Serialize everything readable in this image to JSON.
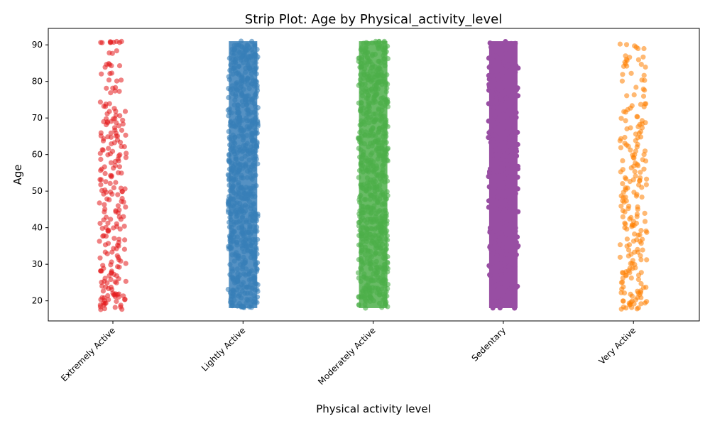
{
  "chart_data": {
    "type": "scatter",
    "subtype": "strip",
    "title": "Strip Plot: Age by Physical_activity_level",
    "xlabel": "Physical activity level",
    "ylabel": "Age",
    "ylim": [
      14.5,
      94.5
    ],
    "yticks": [
      20,
      30,
      40,
      50,
      60,
      70,
      80,
      90
    ],
    "grid": false,
    "legend": "none",
    "categories": [
      "Extremely Active",
      "Lightly Active",
      "Moderately Active",
      "Sedentary",
      "Very Active"
    ],
    "series": [
      {
        "category": "Extremely Active",
        "color": "#e41a1c",
        "age_range": [
          18,
          91
        ],
        "density": "sparse",
        "values": [
          18,
          18,
          19,
          19,
          20,
          20,
          21,
          21,
          22,
          22,
          23,
          24,
          25,
          25,
          26,
          27,
          28,
          28,
          29,
          30,
          31,
          32,
          33,
          34,
          35,
          36,
          37,
          38,
          39,
          40,
          40,
          41,
          42,
          43,
          44,
          45,
          46,
          47,
          48,
          49,
          50,
          50,
          51,
          52,
          53,
          54,
          55,
          56,
          57,
          58,
          59,
          60,
          60,
          61,
          62,
          63,
          64,
          65,
          65,
          66,
          67,
          68,
          69,
          69,
          70,
          71,
          72,
          73,
          74,
          77,
          78,
          80,
          82,
          84,
          85,
          88,
          91,
          91,
          91
        ]
      },
      {
        "category": "Lightly Active",
        "color": "#377eb8",
        "age_range": [
          18,
          91
        ],
        "density": "dense"
      },
      {
        "category": "Moderately Active",
        "color": "#4daf4a",
        "age_range": [
          18,
          91
        ],
        "density": "dense"
      },
      {
        "category": "Sedentary",
        "color": "#984ea3",
        "age_range": [
          18,
          91
        ],
        "density": "solid"
      },
      {
        "category": "Very Active",
        "color": "#ff7f00",
        "age_range": [
          18,
          90
        ],
        "density": "sparse",
        "values": [
          18,
          18,
          19,
          19,
          20,
          20,
          21,
          22,
          22,
          23,
          24,
          25,
          26,
          27,
          28,
          28,
          29,
          30,
          31,
          32,
          33,
          34,
          35,
          36,
          37,
          38,
          39,
          40,
          41,
          41,
          42,
          43,
          44,
          45,
          46,
          47,
          48,
          49,
          50,
          51,
          52,
          53,
          53,
          54,
          55,
          56,
          57,
          58,
          59,
          60,
          61,
          62,
          63,
          64,
          65,
          66,
          67,
          68,
          69,
          70,
          72,
          73,
          74,
          76,
          78,
          80,
          82,
          84,
          85,
          86,
          87,
          89,
          90
        ]
      }
    ]
  }
}
